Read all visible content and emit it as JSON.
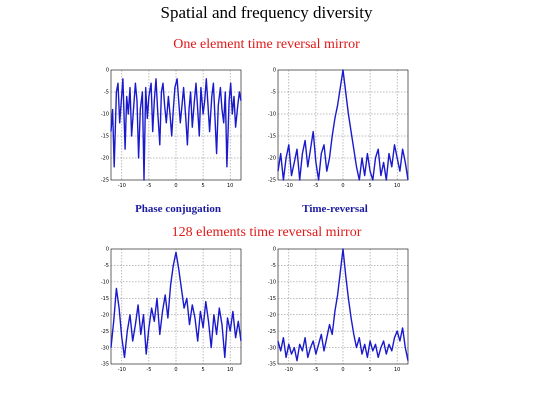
{
  "slide": {
    "title": "Spatial and frequency diversity",
    "subtitle_top": "One element time reversal mirror",
    "subtitle_bottom": "128 elements time reversal mirror",
    "caption_left": "Phase conjugation",
    "caption_right": "Time-reversal",
    "subtitle_color": "#e01818",
    "caption_color": "#1a1aa0",
    "curve_color": "#1a1acc"
  },
  "chart_data": [
    {
      "type": "line",
      "name": "top-left",
      "xlim": [
        -12,
        12
      ],
      "ylim": [
        -25,
        0
      ],
      "xticks": [
        -10,
        -5,
        0,
        5,
        10
      ],
      "yticks": [
        0,
        -5,
        -10,
        -15,
        -20,
        -25
      ],
      "grid": true,
      "x": [
        -12.0,
        -11.7,
        -11.4,
        -11.0,
        -10.7,
        -10.4,
        -10.1,
        -9.8,
        -9.4,
        -9.1,
        -8.8,
        -8.5,
        -8.2,
        -7.8,
        -7.5,
        -7.2,
        -6.9,
        -6.6,
        -6.2,
        -5.9,
        -5.6,
        -5.3,
        -5.0,
        -4.6,
        -4.3,
        -4.0,
        -3.7,
        -3.4,
        -3.0,
        -2.7,
        -2.4,
        -2.1,
        -1.8,
        -1.4,
        -1.1,
        -0.8,
        -0.5,
        -0.2,
        0.2,
        0.5,
        0.8,
        1.1,
        1.4,
        1.8,
        2.1,
        2.4,
        2.7,
        3.0,
        3.4,
        3.7,
        4.0,
        4.3,
        4.6,
        5.0,
        5.3,
        5.6,
        5.9,
        6.2,
        6.6,
        6.9,
        7.2,
        7.5,
        7.8,
        8.2,
        8.5,
        8.8,
        9.1,
        9.4,
        9.8,
        10.1,
        10.4,
        10.7,
        11.0,
        11.4,
        11.7,
        12.0
      ],
      "y": [
        -14,
        -9,
        -22,
        -5,
        -3,
        -12,
        -7,
        -2,
        -18,
        -6,
        -10,
        -4,
        -15,
        -8,
        -3,
        -7,
        -20,
        -9,
        -5,
        -25,
        -4,
        -11,
        -6,
        -3,
        -14,
        -7,
        -2,
        -9,
        -17,
        -5,
        -3,
        -8,
        -12,
        -6,
        -10,
        -15,
        -9,
        -4,
        -2,
        -7,
        -12,
        -8,
        -4,
        -11,
        -17,
        -9,
        -5,
        -13,
        -7,
        -3,
        -9,
        -15,
        -4,
        -10,
        -7,
        -2,
        -8,
        -14,
        -6,
        -3,
        -11,
        -19,
        -8,
        -4,
        -9,
        -12,
        -5,
        -22,
        -7,
        -3,
        -10,
        -6,
        -13,
        -8,
        -5,
        -7
      ]
    },
    {
      "type": "line",
      "name": "top-right",
      "xlim": [
        -12,
        12
      ],
      "ylim": [
        -25,
        0
      ],
      "xticks": [
        -10,
        -5,
        0,
        5,
        10
      ],
      "yticks": [
        0,
        -5,
        -10,
        -15,
        -20,
        -25
      ],
      "grid": true,
      "x": [
        -12.0,
        -11.5,
        -11.0,
        -10.5,
        -10.0,
        -9.5,
        -9.0,
        -8.5,
        -8.0,
        -7.5,
        -7.0,
        -6.5,
        -6.0,
        -5.5,
        -5.0,
        -4.5,
        -4.0,
        -3.5,
        -3.0,
        -2.5,
        -2.0,
        -1.5,
        -1.0,
        -0.5,
        0.0,
        0.5,
        1.0,
        1.5,
        2.0,
        2.5,
        3.0,
        3.5,
        4.0,
        4.5,
        5.0,
        5.5,
        6.0,
        6.5,
        7.0,
        7.5,
        8.0,
        8.5,
        9.0,
        9.5,
        10.0,
        10.5,
        11.0,
        11.5,
        12.0
      ],
      "y": [
        -23,
        -19,
        -25,
        -20,
        -17,
        -24,
        -21,
        -18,
        -25,
        -19,
        -16,
        -22,
        -18,
        -14,
        -21,
        -25,
        -19,
        -17,
        -23,
        -20,
        -15,
        -11,
        -8,
        -4,
        0,
        -5,
        -10,
        -14,
        -18,
        -22,
        -25,
        -20,
        -24,
        -19,
        -23,
        -25,
        -20,
        -18,
        -24,
        -21,
        -25,
        -19,
        -22,
        -17,
        -20,
        -23,
        -18,
        -21,
        -25
      ]
    },
    {
      "type": "line",
      "name": "bottom-left",
      "xlim": [
        -12,
        12
      ],
      "ylim": [
        -35,
        0
      ],
      "xticks": [
        -10,
        -5,
        0,
        5,
        10
      ],
      "yticks": [
        0,
        -5,
        -10,
        -15,
        -20,
        -25,
        -30,
        -35
      ],
      "grid": true,
      "x": [
        -12.0,
        -11.5,
        -11.0,
        -10.5,
        -10.0,
        -9.5,
        -9.0,
        -8.5,
        -8.0,
        -7.5,
        -7.0,
        -6.5,
        -6.0,
        -5.5,
        -5.0,
        -4.5,
        -4.0,
        -3.5,
        -3.0,
        -2.5,
        -2.0,
        -1.5,
        -1.0,
        -0.5,
        0.0,
        0.5,
        1.0,
        1.5,
        2.0,
        2.5,
        3.0,
        3.5,
        4.0,
        4.5,
        5.0,
        5.5,
        6.0,
        6.5,
        7.0,
        7.5,
        8.0,
        8.5,
        9.0,
        9.5,
        10.0,
        10.5,
        11.0,
        11.5,
        12.0
      ],
      "y": [
        -30,
        -22,
        -12,
        -18,
        -27,
        -33,
        -25,
        -20,
        -28,
        -23,
        -17,
        -26,
        -20,
        -32,
        -24,
        -18,
        -22,
        -15,
        -26,
        -19,
        -14,
        -21,
        -11,
        -5,
        -1,
        -6,
        -12,
        -18,
        -15,
        -23,
        -17,
        -21,
        -28,
        -19,
        -24,
        -16,
        -22,
        -30,
        -20,
        -26,
        -18,
        -23,
        -33,
        -21,
        -25,
        -19,
        -27,
        -22,
        -28
      ]
    },
    {
      "type": "line",
      "name": "bottom-right",
      "xlim": [
        -12,
        12
      ],
      "ylim": [
        -35,
        0
      ],
      "xticks": [
        -10,
        -5,
        0,
        5,
        10
      ],
      "yticks": [
        0,
        -5,
        -10,
        -15,
        -20,
        -25,
        -30,
        -35
      ],
      "grid": true,
      "x": [
        -12.0,
        -11.5,
        -11.0,
        -10.5,
        -10.0,
        -9.5,
        -9.0,
        -8.5,
        -8.0,
        -7.5,
        -7.0,
        -6.5,
        -6.0,
        -5.5,
        -5.0,
        -4.5,
        -4.0,
        -3.5,
        -3.0,
        -2.5,
        -2.0,
        -1.5,
        -1.0,
        -0.5,
        0.0,
        0.5,
        1.0,
        1.5,
        2.0,
        2.5,
        3.0,
        3.5,
        4.0,
        4.5,
        5.0,
        5.5,
        6.0,
        6.5,
        7.0,
        7.5,
        8.0,
        8.5,
        9.0,
        9.5,
        10.0,
        10.5,
        11.0,
        11.5,
        12.0
      ],
      "y": [
        -28,
        -31,
        -27,
        -33,
        -29,
        -32,
        -30,
        -34,
        -29,
        -31,
        -27,
        -33,
        -30,
        -28,
        -32,
        -29,
        -26,
        -31,
        -27,
        -23,
        -26,
        -19,
        -14,
        -7,
        0,
        -8,
        -15,
        -21,
        -26,
        -30,
        -27,
        -32,
        -29,
        -33,
        -28,
        -31,
        -29,
        -33,
        -30,
        -28,
        -32,
        -29,
        -31,
        -27,
        -25,
        -28,
        -24,
        -30,
        -34
      ]
    }
  ]
}
